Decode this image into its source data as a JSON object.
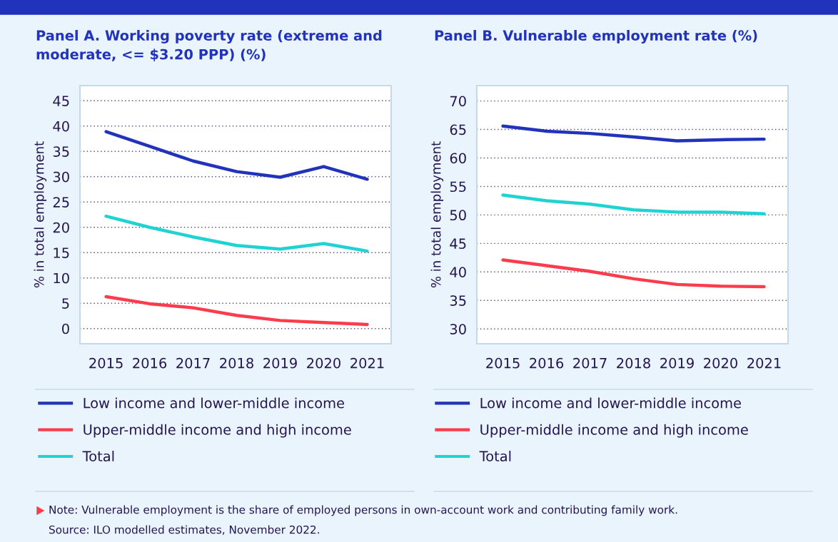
{
  "chart_data": [
    {
      "type": "line",
      "title": "Panel A. Working poverty rate (extreme and moderate, <= $3.20 PPP) (%)",
      "ylabel": "% in total employment",
      "categories": [
        "2015",
        "2016",
        "2017",
        "2018",
        "2019",
        "2020",
        "2021"
      ],
      "series": [
        {
          "name": "Low income and lower-middle income",
          "color": "#2233bb",
          "values": [
            38.9,
            36.0,
            33.1,
            31.0,
            29.9,
            32.0,
            29.5
          ]
        },
        {
          "name": "Upper-middle income and high income",
          "color": "#fa3c4c",
          "values": [
            6.3,
            4.9,
            4.1,
            2.6,
            1.6,
            1.2,
            0.8
          ]
        },
        {
          "name": "Total",
          "color": "#1fd3d3",
          "values": [
            22.2,
            20.0,
            18.1,
            16.4,
            15.7,
            16.8,
            15.3
          ]
        }
      ],
      "ylim": [
        -3,
        48
      ],
      "yticks": [
        0,
        5,
        10,
        15,
        20,
        25,
        30,
        35,
        40,
        45
      ],
      "grid": "y",
      "legend": "bottom",
      "marker": "none",
      "line_style": "solid",
      "annotations": [
        "Note: Vulnerable employment is the share of employed persons in own-account work and contributing family work.",
        "Source: ILO modelled estimates, November 2022."
      ]
    },
    {
      "type": "line",
      "title": "Panel B. Vulnerable employment rate (%)",
      "ylabel": "% in total employment",
      "categories": [
        "2015",
        "2016",
        "2017",
        "2018",
        "2019",
        "2020",
        "2021"
      ],
      "series": [
        {
          "name": "Low income and lower-middle income",
          "color": "#2233bb",
          "values": [
            65.6,
            64.7,
            64.3,
            63.7,
            63.0,
            63.2,
            63.3
          ]
        },
        {
          "name": "Upper-middle income and high income",
          "color": "#fa3c4c",
          "values": [
            42.1,
            41.1,
            40.1,
            38.8,
            37.8,
            37.5,
            37.4
          ]
        },
        {
          "name": "Total",
          "color": "#1fd3d3",
          "values": [
            53.5,
            52.5,
            51.9,
            50.9,
            50.5,
            50.5,
            50.2
          ]
        }
      ],
      "ylim": [
        27.4,
        72.7
      ],
      "yticks": [
        30,
        35,
        40,
        45,
        50,
        55,
        60,
        65,
        70
      ],
      "grid": "y",
      "legend": "bottom",
      "marker": "none",
      "line_style": "solid"
    }
  ]
}
